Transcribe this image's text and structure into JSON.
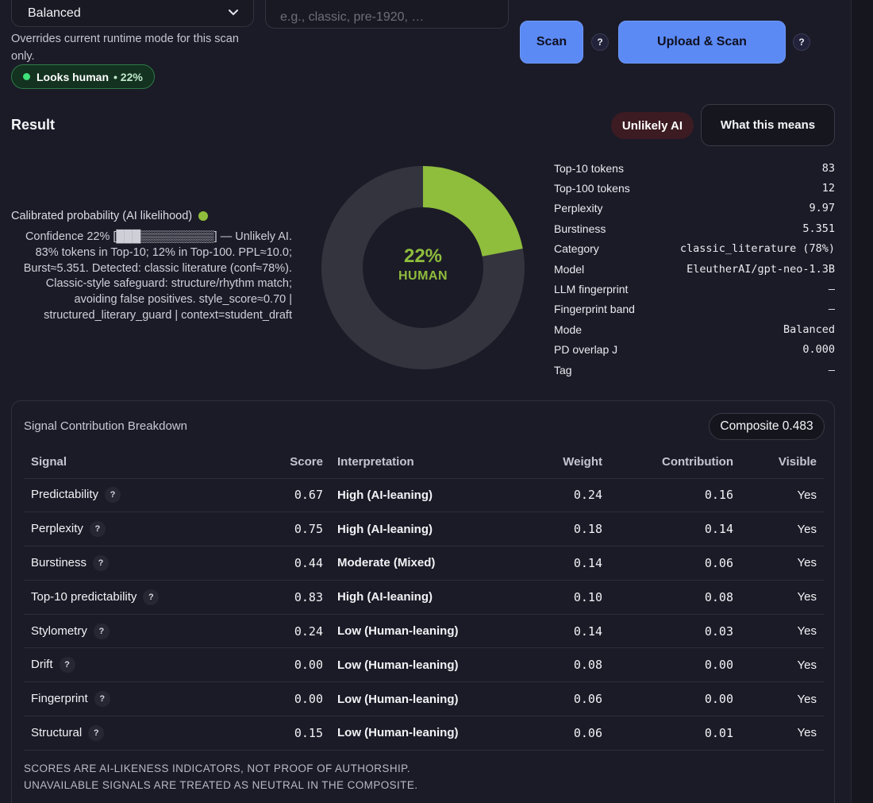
{
  "controls": {
    "mode_value": "Balanced",
    "mode_note": "Overrides current runtime mode for this scan only.",
    "era_placeholder": "e.g., classic, pre-1920, …",
    "status_pill": {
      "label": "Looks human",
      "pct": "• 22%"
    },
    "scan_label": "Scan",
    "upload_label": "Upload & Scan",
    "help": "?"
  },
  "result": {
    "title": "Result",
    "verdict": "Unlikely AI",
    "means_label": "What this means",
    "prob_label": "Calibrated probability (AI likelihood)",
    "explanation": "Confidence 22% [███▒▒▒▒▒▒▒▒▒] — Unlikely AI. 83% tokens in Top-10; 12% in Top-100. PPL≈10.0; Burst≈5.351. Detected: classic literature (conf≈78%). Classic-style safeguard: structure/rhythm match; avoiding false positives. style_score≈0.70 | structured_literary_guard | context=student_draft",
    "donut": {
      "ai_fraction": 0.22,
      "pct_text": "22%",
      "label": "HUMAN",
      "ai_color": "#8fbd3c",
      "rest_color": "#34343e"
    },
    "stats": [
      {
        "k": "Top-10 tokens",
        "v": "83"
      },
      {
        "k": "Top-100 tokens",
        "v": "12"
      },
      {
        "k": "Perplexity",
        "v": "9.97"
      },
      {
        "k": "Burstiness",
        "v": "5.351"
      },
      {
        "k": "Category",
        "v": "classic_literature (78%)"
      },
      {
        "k": "Model",
        "v": "EleutherAI/gpt-neo-1.3B"
      },
      {
        "k": "LLM fingerprint",
        "v": "–"
      },
      {
        "k": "Fingerprint band",
        "v": "–"
      },
      {
        "k": "Mode",
        "v": "Balanced"
      },
      {
        "k": "PD overlap J",
        "v": "0.000"
      },
      {
        "k": "Tag",
        "v": "–"
      }
    ]
  },
  "signals": {
    "title": "Signal Contribution Breakdown",
    "composite": "Composite 0.483",
    "headers": {
      "signal": "Signal",
      "score": "Score",
      "interp": "Interpretation",
      "weight": "Weight",
      "contrib": "Contribution",
      "visible": "Visible"
    },
    "rows": [
      {
        "signal": "Predictability",
        "score": "0.67",
        "interp": "High (AI-leaning)",
        "weight": "0.24",
        "contrib": "0.16",
        "visible": "Yes"
      },
      {
        "signal": "Perplexity",
        "score": "0.75",
        "interp": "High (AI-leaning)",
        "weight": "0.18",
        "contrib": "0.14",
        "visible": "Yes"
      },
      {
        "signal": "Burstiness",
        "score": "0.44",
        "interp": "Moderate (Mixed)",
        "weight": "0.14",
        "contrib": "0.06",
        "visible": "Yes"
      },
      {
        "signal": "Top-10 predictability",
        "score": "0.83",
        "interp": "High (AI-leaning)",
        "weight": "0.10",
        "contrib": "0.08",
        "visible": "Yes"
      },
      {
        "signal": "Stylometry",
        "score": "0.24",
        "interp": "Low (Human-leaning)",
        "weight": "0.14",
        "contrib": "0.03",
        "visible": "Yes"
      },
      {
        "signal": "Drift",
        "score": "0.00",
        "interp": "Low (Human-leaning)",
        "weight": "0.08",
        "contrib": "0.00",
        "visible": "Yes"
      },
      {
        "signal": "Fingerprint",
        "score": "0.00",
        "interp": "Low (Human-leaning)",
        "weight": "0.06",
        "contrib": "0.00",
        "visible": "Yes"
      },
      {
        "signal": "Structural",
        "score": "0.15",
        "interp": "Low (Human-leaning)",
        "weight": "0.06",
        "contrib": "0.01",
        "visible": "Yes"
      }
    ],
    "footnote_1": "SCORES ARE AI-LIKENESS INDICATORS, NOT PROOF OF AUTHORSHIP.",
    "footnote_2": "UNAVAILABLE SIGNALS ARE TREATED AS NEUTRAL IN THE COMPOSITE."
  }
}
